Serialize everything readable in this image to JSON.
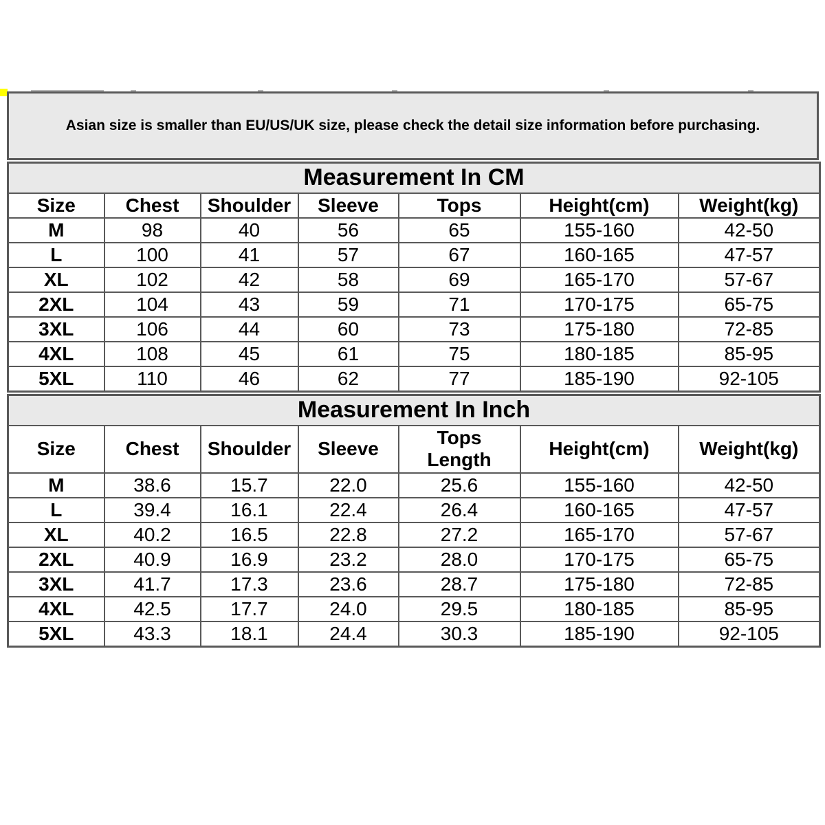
{
  "notice": "Asian size is smaller than EU/US/UK size, please check the detail size information before purchasing.",
  "cm_table": {
    "title": "Measurement In CM",
    "headers": [
      "Size",
      "Chest",
      "Shoulder",
      "Sleeve",
      "Tops",
      "Height(cm)",
      "Weight(kg)"
    ],
    "rows": [
      [
        "M",
        "98",
        "40",
        "56",
        "65",
        "155-160",
        "42-50"
      ],
      [
        "L",
        "100",
        "41",
        "57",
        "67",
        "160-165",
        "47-57"
      ],
      [
        "XL",
        "102",
        "42",
        "58",
        "69",
        "165-170",
        "57-67"
      ],
      [
        "2XL",
        "104",
        "43",
        "59",
        "71",
        "170-175",
        "65-75"
      ],
      [
        "3XL",
        "106",
        "44",
        "60",
        "73",
        "175-180",
        "72-85"
      ],
      [
        "4XL",
        "108",
        "45",
        "61",
        "75",
        "180-185",
        "85-95"
      ],
      [
        "5XL",
        "110",
        "46",
        "62",
        "77",
        "185-190",
        "92-105"
      ]
    ]
  },
  "inch_table": {
    "title": "Measurement In Inch",
    "headers": [
      "Size",
      "Chest",
      "Shoulder",
      "Sleeve",
      "Tops\nLength",
      "Height(cm)",
      "Weight(kg)"
    ],
    "rows": [
      [
        "M",
        "38.6",
        "15.7",
        "22.0",
        "25.6",
        "155-160",
        "42-50"
      ],
      [
        "L",
        "39.4",
        "16.1",
        "22.4",
        "26.4",
        "160-165",
        "47-57"
      ],
      [
        "XL",
        "40.2",
        "16.5",
        "22.8",
        "27.2",
        "165-170",
        "57-67"
      ],
      [
        "2XL",
        "40.9",
        "16.9",
        "23.2",
        "28.0",
        "170-175",
        "65-75"
      ],
      [
        "3XL",
        "41.7",
        "17.3",
        "23.6",
        "28.7",
        "175-180",
        "72-85"
      ],
      [
        "4XL",
        "42.5",
        "17.7",
        "24.0",
        "29.5",
        "180-185",
        "85-95"
      ],
      [
        "5XL",
        "43.3",
        "18.1",
        "24.4",
        "30.3",
        "185-190",
        "92-105"
      ]
    ]
  },
  "colors": {
    "border": "#595959",
    "section_background": "#e9e9e9",
    "corner_marker": "#ffff00",
    "text": "#000000"
  }
}
